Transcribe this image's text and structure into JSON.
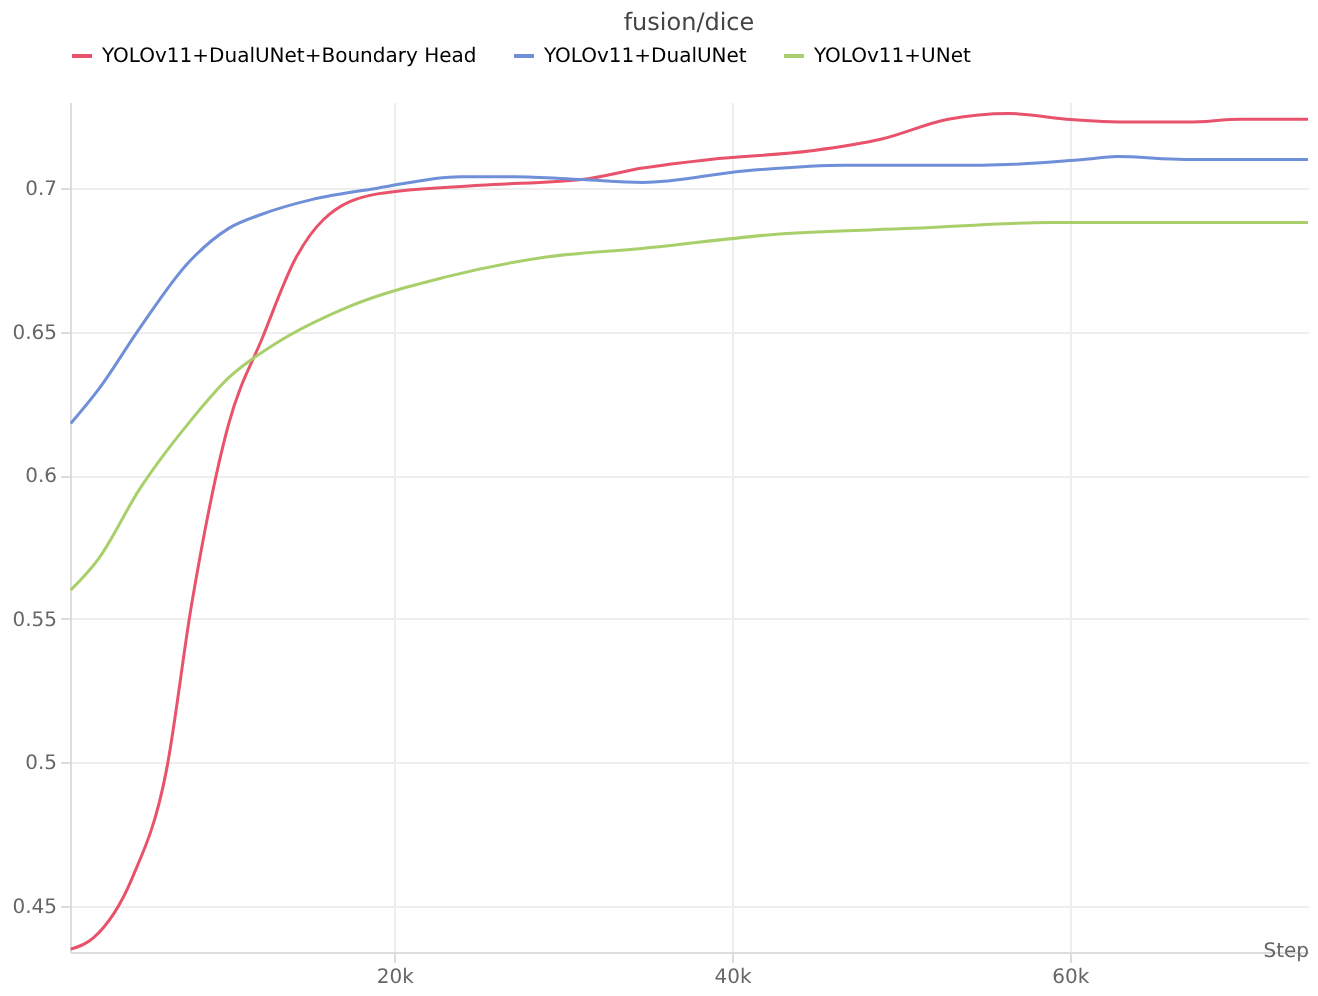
{
  "chart_data": {
    "type": "line",
    "title": "fusion/dice",
    "xlabel": "Step",
    "xlim": [
      800,
      74100
    ],
    "xticks": [
      {
        "value": 20000,
        "label": "20k"
      },
      {
        "value": 40000,
        "label": "40k"
      },
      {
        "value": 60000,
        "label": "60k"
      }
    ],
    "ylim": [
      0.434,
      0.73
    ],
    "yticks": [
      0.45,
      0.5,
      0.55,
      0.6,
      0.65,
      0.7
    ],
    "grid": true,
    "legend": "top",
    "line_style": "solid",
    "marker": "none",
    "series": [
      {
        "name": "YOLOv11+DualUNet+Boundary Head",
        "color": "#e8536b",
        "x": [
          840,
          2200,
          4500,
          6500,
          8000,
          10200,
          12200,
          14200,
          15800,
          19000,
          25100,
          31100,
          34700,
          38700,
          44700,
          48800,
          52800,
          56400,
          59800,
          63800,
          67000,
          70100,
          74100
        ],
        "values": [
          0.435,
          0.439,
          0.46,
          0.497,
          0.555,
          0.618,
          0.648,
          0.676,
          0.689,
          0.698,
          0.701,
          0.703,
          0.707,
          0.71,
          0.713,
          0.717,
          0.724,
          0.726,
          0.724,
          0.723,
          0.723,
          0.724,
          0.724
        ]
      },
      {
        "name": "YOLOv11+DualUNet",
        "color": "#6f8fd8",
        "x": [
          840,
          2500,
          4900,
          7800,
          10200,
          12200,
          15100,
          19000,
          23900,
          27100,
          31100,
          34700,
          40700,
          46700,
          54800,
          60800,
          62800,
          66800,
          74100
        ],
        "values": [
          0.618,
          0.63,
          0.651,
          0.674,
          0.686,
          0.691,
          0.696,
          0.7,
          0.704,
          0.704,
          0.703,
          0.702,
          0.706,
          0.708,
          0.708,
          0.71,
          0.711,
          0.71,
          0.71
        ]
      },
      {
        "name": "YOLOv11+UNet",
        "color": "#a9cf6b",
        "x": [
          840,
          2500,
          4900,
          7800,
          10200,
          13000,
          17000,
          23000,
          29000,
          34700,
          42800,
          50700,
          58800,
          66800,
          74100
        ],
        "values": [
          0.56,
          0.571,
          0.595,
          0.618,
          0.634,
          0.646,
          0.658,
          0.669,
          0.676,
          0.679,
          0.684,
          0.686,
          0.688,
          0.688,
          0.688
        ]
      }
    ]
  }
}
